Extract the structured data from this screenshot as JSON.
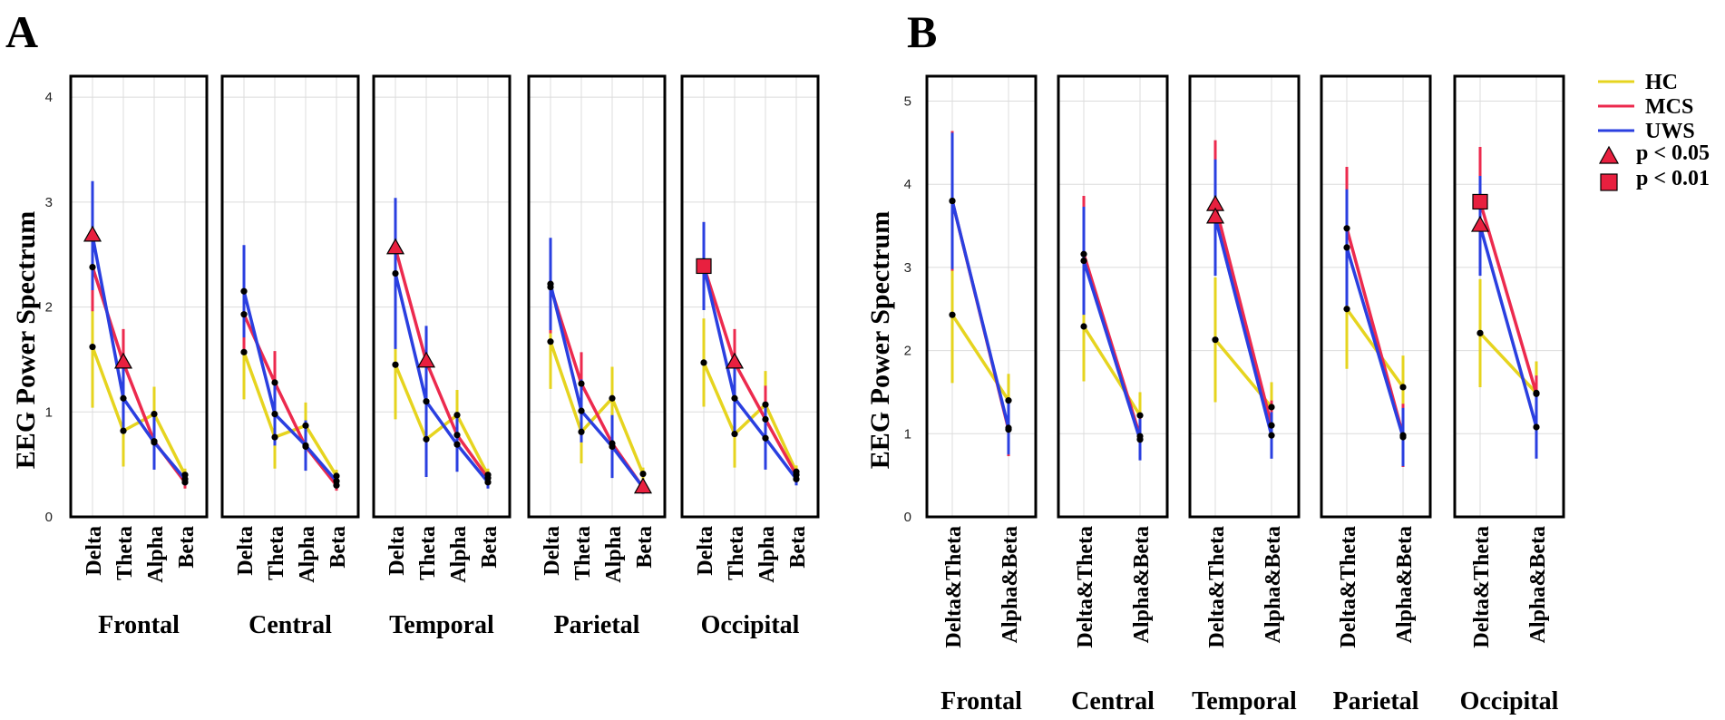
{
  "colors": {
    "HC": "#e6d41f",
    "MCS": "#ec2a4e",
    "UWS": "#2a3fe0",
    "marker": "#e8203f",
    "dot": "#000000",
    "grid": "#dcdcdc"
  },
  "legend": {
    "items": [
      {
        "label": "HC",
        "group": "HC"
      },
      {
        "label": "MCS",
        "group": "MCS"
      },
      {
        "label": "UWS",
        "group": "UWS"
      }
    ],
    "markers": [
      {
        "label": "p < 0.05",
        "shape": "triangle"
      },
      {
        "label": "p < 0.01",
        "shape": "square"
      }
    ]
  },
  "chart_data": [
    {
      "panel": "A",
      "type": "line",
      "ylabel": "EEG Power Spectrum",
      "ylim": [
        0,
        4.2
      ],
      "yticks": [
        0,
        1,
        2,
        3,
        4
      ],
      "categories": [
        "Delta",
        "Theta",
        "Alpha",
        "Beta"
      ],
      "facets": [
        {
          "name": "Frontal",
          "series": [
            {
              "name": "HC",
              "values": [
                1.62,
                0.82,
                0.98,
                0.4
              ],
              "err": [
                0.58,
                0.34,
                0.26,
                0.06
              ]
            },
            {
              "name": "MCS",
              "values": [
                2.38,
                1.47,
                0.72,
                0.33
              ],
              "err": [
                0.42,
                0.32,
                0.16,
                0.06
              ]
            },
            {
              "name": "UWS",
              "values": [
                2.68,
                1.13,
                0.71,
                0.36
              ],
              "err": [
                0.52,
                0.3,
                0.26,
                0.06
              ]
            }
          ],
          "sig": [
            {
              "cat": "Delta",
              "y": 2.68,
              "shape": "triangle"
            },
            {
              "cat": "Theta",
              "y": 1.47,
              "shape": "triangle"
            }
          ]
        },
        {
          "name": "Central",
          "series": [
            {
              "name": "HC",
              "values": [
                1.57,
                0.76,
                0.87,
                0.39
              ],
              "err": [
                0.45,
                0.3,
                0.22,
                0.06
              ]
            },
            {
              "name": "MCS",
              "values": [
                1.93,
                1.28,
                0.67,
                0.3
              ],
              "err": [
                0.35,
                0.3,
                0.16,
                0.05
              ]
            },
            {
              "name": "UWS",
              "values": [
                2.15,
                0.98,
                0.68,
                0.34
              ],
              "err": [
                0.44,
                0.3,
                0.24,
                0.06
              ]
            }
          ],
          "sig": []
        },
        {
          "name": "Temporal",
          "series": [
            {
              "name": "HC",
              "values": [
                1.45,
                0.74,
                0.97,
                0.4
              ],
              "err": [
                0.52,
                0.34,
                0.24,
                0.06
              ]
            },
            {
              "name": "MCS",
              "values": [
                2.56,
                1.48,
                0.78,
                0.37
              ],
              "err": [
                0.44,
                0.32,
                0.18,
                0.06
              ]
            },
            {
              "name": "UWS",
              "values": [
                2.32,
                1.1,
                0.69,
                0.33
              ],
              "err": [
                0.72,
                0.72,
                0.26,
                0.06
              ]
            }
          ],
          "sig": [
            {
              "cat": "Delta",
              "y": 2.56,
              "shape": "triangle"
            },
            {
              "cat": "Theta",
              "y": 1.48,
              "shape": "triangle"
            }
          ]
        },
        {
          "name": "Parietal",
          "series": [
            {
              "name": "HC",
              "values": [
                1.67,
                0.81,
                1.13,
                0.41
              ],
              "err": [
                0.45,
                0.3,
                0.3,
                0.06
              ]
            },
            {
              "name": "MCS",
              "values": [
                2.19,
                1.27,
                0.7,
                0.28
              ],
              "err": [
                0.44,
                0.3,
                0.18,
                0.06
              ]
            },
            {
              "name": "UWS",
              "values": [
                2.22,
                1.01,
                0.67,
                0.28
              ],
              "err": [
                0.44,
                0.3,
                0.3,
                0.06
              ]
            }
          ],
          "sig": [
            {
              "cat": "Beta",
              "y": 0.28,
              "shape": "triangle"
            }
          ]
        },
        {
          "name": "Occipital",
          "series": [
            {
              "name": "HC",
              "values": [
                1.47,
                0.79,
                1.07,
                0.43
              ],
              "err": [
                0.42,
                0.32,
                0.32,
                0.06
              ]
            },
            {
              "name": "MCS",
              "values": [
                2.39,
                1.47,
                0.93,
                0.4
              ],
              "err": [
                0.42,
                0.32,
                0.32,
                0.06
              ]
            },
            {
              "name": "UWS",
              "values": [
                2.39,
                1.13,
                0.75,
                0.36
              ],
              "err": [
                0.42,
                0.32,
                0.3,
                0.06
              ]
            }
          ],
          "sig": [
            {
              "cat": "Delta",
              "y": 2.39,
              "shape": "square"
            },
            {
              "cat": "Theta",
              "y": 1.47,
              "shape": "triangle"
            }
          ]
        }
      ]
    },
    {
      "panel": "B",
      "type": "line",
      "ylabel": "EEG Power Spectrum",
      "ylim": [
        0,
        5.3
      ],
      "yticks": [
        0,
        1,
        2,
        3,
        4,
        5
      ],
      "categories": [
        "Delta&Theta",
        "Alpha&Beta"
      ],
      "facets": [
        {
          "name": "Frontal",
          "series": [
            {
              "name": "HC",
              "values": [
                2.43,
                1.4
              ],
              "err": [
                0.82,
                0.32
              ]
            },
            {
              "name": "MCS",
              "values": [
                3.8,
                1.05
              ],
              "err": [
                0.84,
                0.32
              ]
            },
            {
              "name": "UWS",
              "values": [
                3.8,
                1.07
              ],
              "err": [
                0.82,
                0.32
              ]
            }
          ],
          "sig": []
        },
        {
          "name": "Central",
          "series": [
            {
              "name": "HC",
              "values": [
                2.29,
                1.22
              ],
              "err": [
                0.66,
                0.28
              ]
            },
            {
              "name": "MCS",
              "values": [
                3.16,
                0.97
              ],
              "err": [
                0.7,
                0.28
              ]
            },
            {
              "name": "UWS",
              "values": [
                3.08,
                0.93
              ],
              "err": [
                0.65,
                0.25
              ]
            }
          ],
          "sig": []
        },
        {
          "name": "Temporal",
          "series": [
            {
              "name": "HC",
              "values": [
                2.13,
                1.32
              ],
              "err": [
                0.75,
                0.3
              ]
            },
            {
              "name": "MCS",
              "values": [
                3.75,
                1.1
              ],
              "err": [
                0.78,
                0.3
              ]
            },
            {
              "name": "UWS",
              "values": [
                3.6,
                0.98
              ],
              "err": [
                0.7,
                0.28
              ]
            }
          ],
          "sig": [
            {
              "cat": "Delta&Theta",
              "y": 3.75,
              "shape": "triangle"
            },
            {
              "cat": "Delta&Theta",
              "y": 3.6,
              "shape": "triangle"
            }
          ]
        },
        {
          "name": "Parietal",
          "series": [
            {
              "name": "HC",
              "values": [
                2.5,
                1.56
              ],
              "err": [
                0.72,
                0.38
              ]
            },
            {
              "name": "MCS",
              "values": [
                3.47,
                0.98
              ],
              "err": [
                0.74,
                0.38
              ]
            },
            {
              "name": "UWS",
              "values": [
                3.24,
                0.96
              ],
              "err": [
                0.7,
                0.35
              ]
            }
          ],
          "sig": []
        },
        {
          "name": "Occipital",
          "series": [
            {
              "name": "HC",
              "values": [
                2.21,
                1.49
              ],
              "err": [
                0.65,
                0.38
              ]
            },
            {
              "name": "MCS",
              "values": [
                3.79,
                1.48
              ],
              "err": [
                0.66,
                0.22
              ]
            },
            {
              "name": "UWS",
              "values": [
                3.5,
                1.08
              ],
              "err": [
                0.6,
                0.38
              ]
            }
          ],
          "sig": [
            {
              "cat": "Delta&Theta",
              "y": 3.79,
              "shape": "square"
            },
            {
              "cat": "Delta&Theta",
              "y": 3.5,
              "shape": "triangle"
            }
          ]
        }
      ]
    }
  ]
}
